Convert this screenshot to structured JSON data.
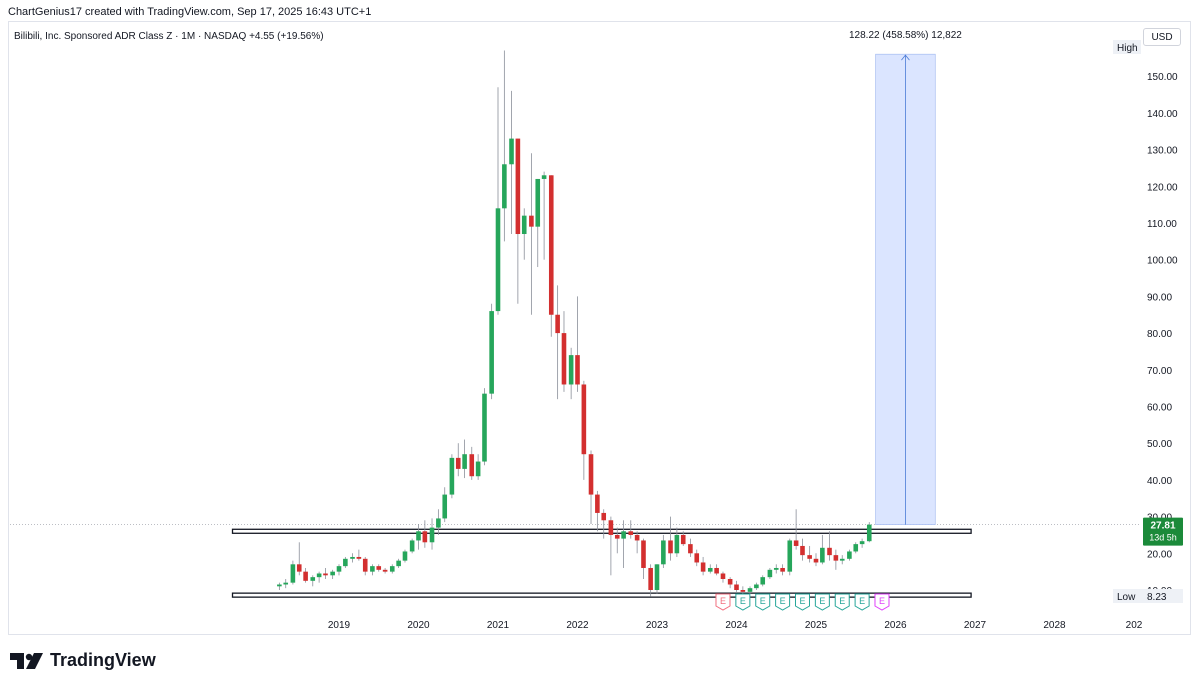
{
  "header": {
    "attribution": "ChartGenius17 created with TradingView.com, Sep 17, 2025 16:43 UTC+1",
    "symbol_line": "Bilibili, Inc. Sponsored ADR Class Z · 1M · NASDAQ  +4.55 (+19.56%)",
    "currency": "USD"
  },
  "brand": {
    "name": "TradingView"
  },
  "colors": {
    "up": "#26a65b",
    "down": "#d32f2f",
    "projection_fill": "#dbe5ff",
    "projection_line": "#4a7bd6",
    "price_tag": "#1b8a3a",
    "earnings_red": "#f26d7d",
    "earnings_green": "#26a69a",
    "earnings_purple": "#e040fb"
  },
  "chart_data": {
    "type": "candlestick",
    "interval": "1M",
    "x_tick_labels": [
      "2019",
      "2020",
      "2021",
      "2022",
      "2023",
      "2024",
      "2025",
      "2026",
      "2027",
      "2028",
      "202"
    ],
    "y_ticks": [
      10,
      20,
      30,
      40,
      50,
      60,
      70,
      80,
      90,
      100,
      110,
      120,
      130,
      140,
      150
    ],
    "y_tick_labels": [
      "10.00",
      "20.00",
      "30.00",
      "40.00",
      "50.00",
      "60.00",
      "70.00",
      "80.00",
      "90.00",
      "100.00",
      "110.00",
      "120.00",
      "130.00",
      "140.00",
      "150.00"
    ],
    "ylim": [
      8.0,
      158.0
    ],
    "candles": [
      {
        "t": 2018.25,
        "o": 11.0,
        "h": 12.0,
        "l": 10.0,
        "c": 11.5
      },
      {
        "t": 2018.33,
        "o": 11.5,
        "h": 13.0,
        "l": 10.5,
        "c": 12.0
      },
      {
        "t": 2018.42,
        "o": 12.0,
        "h": 18.0,
        "l": 11.5,
        "c": 17.0
      },
      {
        "t": 2018.5,
        "o": 17.0,
        "h": 23.0,
        "l": 14.0,
        "c": 15.0
      },
      {
        "t": 2018.58,
        "o": 15.0,
        "h": 16.0,
        "l": 12.0,
        "c": 12.5
      },
      {
        "t": 2018.67,
        "o": 12.5,
        "h": 14.0,
        "l": 11.0,
        "c": 13.5
      },
      {
        "t": 2018.75,
        "o": 13.5,
        "h": 15.0,
        "l": 12.0,
        "c": 14.5
      },
      {
        "t": 2018.83,
        "o": 14.5,
        "h": 16.0,
        "l": 13.0,
        "c": 14.0
      },
      {
        "t": 2018.92,
        "o": 14.0,
        "h": 15.5,
        "l": 13.0,
        "c": 15.0
      },
      {
        "t": 2019.0,
        "o": 15.0,
        "h": 17.0,
        "l": 14.0,
        "c": 16.5
      },
      {
        "t": 2019.08,
        "o": 16.5,
        "h": 19.0,
        "l": 16.0,
        "c": 18.5
      },
      {
        "t": 2019.17,
        "o": 18.5,
        "h": 20.0,
        "l": 17.5,
        "c": 19.0
      },
      {
        "t": 2019.25,
        "o": 19.0,
        "h": 21.0,
        "l": 18.0,
        "c": 18.5
      },
      {
        "t": 2019.33,
        "o": 18.5,
        "h": 19.0,
        "l": 14.0,
        "c": 15.0
      },
      {
        "t": 2019.42,
        "o": 15.0,
        "h": 17.0,
        "l": 14.0,
        "c": 16.5
      },
      {
        "t": 2019.5,
        "o": 16.5,
        "h": 17.0,
        "l": 15.0,
        "c": 15.5
      },
      {
        "t": 2019.58,
        "o": 15.5,
        "h": 16.0,
        "l": 14.5,
        "c": 15.0
      },
      {
        "t": 2019.67,
        "o": 15.0,
        "h": 17.0,
        "l": 14.5,
        "c": 16.5
      },
      {
        "t": 2019.75,
        "o": 16.5,
        "h": 18.5,
        "l": 16.0,
        "c": 18.0
      },
      {
        "t": 2019.83,
        "o": 18.0,
        "h": 21.0,
        "l": 17.5,
        "c": 20.5
      },
      {
        "t": 2019.92,
        "o": 20.5,
        "h": 24.0,
        "l": 20.0,
        "c": 23.5
      },
      {
        "t": 2020.0,
        "o": 23.5,
        "h": 28.0,
        "l": 21.0,
        "c": 26.0
      },
      {
        "t": 2020.08,
        "o": 26.0,
        "h": 29.0,
        "l": 21.5,
        "c": 23.0
      },
      {
        "t": 2020.17,
        "o": 23.0,
        "h": 29.5,
        "l": 21.0,
        "c": 27.0
      },
      {
        "t": 2020.25,
        "o": 27.0,
        "h": 32.0,
        "l": 25.0,
        "c": 29.5
      },
      {
        "t": 2020.33,
        "o": 29.5,
        "h": 38.0,
        "l": 28.5,
        "c": 36.0
      },
      {
        "t": 2020.42,
        "o": 36.0,
        "h": 47.0,
        "l": 35.0,
        "c": 46.0
      },
      {
        "t": 2020.5,
        "o": 46.0,
        "h": 50.0,
        "l": 41.0,
        "c": 43.0
      },
      {
        "t": 2020.58,
        "o": 43.0,
        "h": 51.0,
        "l": 40.5,
        "c": 47.0
      },
      {
        "t": 2020.67,
        "o": 47.0,
        "h": 49.0,
        "l": 40.0,
        "c": 41.0
      },
      {
        "t": 2020.75,
        "o": 41.0,
        "h": 47.0,
        "l": 40.0,
        "c": 45.0
      },
      {
        "t": 2020.83,
        "o": 45.0,
        "h": 65.0,
        "l": 44.0,
        "c": 63.5
      },
      {
        "t": 2020.92,
        "o": 63.5,
        "h": 88.0,
        "l": 62.0,
        "c": 86.0
      },
      {
        "t": 2021.0,
        "o": 86.0,
        "h": 147.0,
        "l": 85.0,
        "c": 114.0
      },
      {
        "t": 2021.08,
        "o": 114.0,
        "h": 157.0,
        "l": 105.0,
        "c": 126.0
      },
      {
        "t": 2021.17,
        "o": 126.0,
        "h": 146.0,
        "l": 107.0,
        "c": 133.0
      },
      {
        "t": 2021.25,
        "o": 133.0,
        "h": 133.0,
        "l": 88.0,
        "c": 107.0
      },
      {
        "t": 2021.33,
        "o": 107.0,
        "h": 114.0,
        "l": 100.0,
        "c": 112.0
      },
      {
        "t": 2021.42,
        "o": 112.0,
        "h": 129.0,
        "l": 85.0,
        "c": 109.0
      },
      {
        "t": 2021.5,
        "o": 109.0,
        "h": 122.0,
        "l": 98.0,
        "c": 122.0
      },
      {
        "t": 2021.58,
        "o": 122.0,
        "h": 124.0,
        "l": 100.0,
        "c": 123.0
      },
      {
        "t": 2021.67,
        "o": 123.0,
        "h": 123.0,
        "l": 79.0,
        "c": 85.0
      },
      {
        "t": 2021.75,
        "o": 85.0,
        "h": 93.0,
        "l": 62.0,
        "c": 80.0
      },
      {
        "t": 2021.83,
        "o": 80.0,
        "h": 86.0,
        "l": 64.0,
        "c": 66.0
      },
      {
        "t": 2021.92,
        "o": 66.0,
        "h": 76.0,
        "l": 62.0,
        "c": 74.0
      },
      {
        "t": 2022.0,
        "o": 74.0,
        "h": 90.0,
        "l": 64.0,
        "c": 66.0
      },
      {
        "t": 2022.08,
        "o": 66.0,
        "h": 67.0,
        "l": 40.0,
        "c": 47.0
      },
      {
        "t": 2022.17,
        "o": 47.0,
        "h": 48.0,
        "l": 28.0,
        "c": 36.0
      },
      {
        "t": 2022.25,
        "o": 36.0,
        "h": 37.0,
        "l": 26.0,
        "c": 31.0
      },
      {
        "t": 2022.33,
        "o": 31.0,
        "h": 32.0,
        "l": 24.0,
        "c": 29.0
      },
      {
        "t": 2022.42,
        "o": 29.0,
        "h": 30.0,
        "l": 14.0,
        "c": 25.0
      },
      {
        "t": 2022.5,
        "o": 25.0,
        "h": 27.0,
        "l": 20.0,
        "c": 24.0
      },
      {
        "t": 2022.58,
        "o": 24.0,
        "h": 29.0,
        "l": 16.0,
        "c": 26.0
      },
      {
        "t": 2022.67,
        "o": 26.0,
        "h": 29.0,
        "l": 24.0,
        "c": 25.0
      },
      {
        "t": 2022.75,
        "o": 25.0,
        "h": 26.0,
        "l": 20.0,
        "c": 23.5
      },
      {
        "t": 2022.83,
        "o": 23.5,
        "h": 24.0,
        "l": 13.0,
        "c": 16.0
      },
      {
        "t": 2022.92,
        "o": 16.0,
        "h": 17.0,
        "l": 8.3,
        "c": 10.0
      },
      {
        "t": 2023.0,
        "o": 10.0,
        "h": 17.0,
        "l": 9.0,
        "c": 17.0
      },
      {
        "t": 2023.08,
        "o": 17.0,
        "h": 25.0,
        "l": 16.0,
        "c": 23.5
      },
      {
        "t": 2023.17,
        "o": 23.5,
        "h": 30.0,
        "l": 18.0,
        "c": 20.0
      },
      {
        "t": 2023.25,
        "o": 20.0,
        "h": 27.0,
        "l": 19.0,
        "c": 25.0
      },
      {
        "t": 2023.33,
        "o": 25.0,
        "h": 26.0,
        "l": 22.0,
        "c": 22.5
      },
      {
        "t": 2023.42,
        "o": 22.5,
        "h": 24.0,
        "l": 19.0,
        "c": 20.0
      },
      {
        "t": 2023.5,
        "o": 20.0,
        "h": 21.0,
        "l": 16.5,
        "c": 17.5
      },
      {
        "t": 2023.58,
        "o": 17.5,
        "h": 19.0,
        "l": 14.0,
        "c": 15.0
      },
      {
        "t": 2023.67,
        "o": 15.0,
        "h": 17.0,
        "l": 14.5,
        "c": 16.0
      },
      {
        "t": 2023.75,
        "o": 16.0,
        "h": 17.0,
        "l": 14.0,
        "c": 14.5
      },
      {
        "t": 2023.83,
        "o": 14.5,
        "h": 15.0,
        "l": 12.0,
        "c": 13.0
      },
      {
        "t": 2023.92,
        "o": 13.0,
        "h": 13.5,
        "l": 10.5,
        "c": 11.5
      },
      {
        "t": 2024.0,
        "o": 11.5,
        "h": 12.5,
        "l": 9.5,
        "c": 10.0
      },
      {
        "t": 2024.08,
        "o": 10.0,
        "h": 11.0,
        "l": 8.8,
        "c": 9.5
      },
      {
        "t": 2024.17,
        "o": 9.5,
        "h": 11.0,
        "l": 9.0,
        "c": 10.5
      },
      {
        "t": 2024.25,
        "o": 10.5,
        "h": 12.0,
        "l": 10.0,
        "c": 11.5
      },
      {
        "t": 2024.33,
        "o": 11.5,
        "h": 14.0,
        "l": 11.0,
        "c": 13.5
      },
      {
        "t": 2024.42,
        "o": 13.5,
        "h": 16.0,
        "l": 13.0,
        "c": 15.5
      },
      {
        "t": 2024.5,
        "o": 15.5,
        "h": 17.0,
        "l": 14.5,
        "c": 16.0
      },
      {
        "t": 2024.58,
        "o": 16.0,
        "h": 17.0,
        "l": 14.0,
        "c": 15.0
      },
      {
        "t": 2024.67,
        "o": 15.0,
        "h": 24.0,
        "l": 14.0,
        "c": 23.5
      },
      {
        "t": 2024.75,
        "o": 23.5,
        "h": 32.0,
        "l": 21.0,
        "c": 22.0
      },
      {
        "t": 2024.83,
        "o": 22.0,
        "h": 24.0,
        "l": 18.0,
        "c": 19.5
      },
      {
        "t": 2024.92,
        "o": 19.5,
        "h": 22.0,
        "l": 17.5,
        "c": 18.5
      },
      {
        "t": 2025.0,
        "o": 18.5,
        "h": 20.0,
        "l": 16.5,
        "c": 17.5
      },
      {
        "t": 2025.08,
        "o": 17.5,
        "h": 25.0,
        "l": 17.0,
        "c": 21.5
      },
      {
        "t": 2025.17,
        "o": 21.5,
        "h": 26.0,
        "l": 18.0,
        "c": 19.5
      },
      {
        "t": 2025.25,
        "o": 19.5,
        "h": 21.0,
        "l": 15.5,
        "c": 18.0
      },
      {
        "t": 2025.33,
        "o": 18.0,
        "h": 19.5,
        "l": 17.0,
        "c": 18.5
      },
      {
        "t": 2025.42,
        "o": 18.5,
        "h": 21.0,
        "l": 18.0,
        "c": 20.5
      },
      {
        "t": 2025.5,
        "o": 20.5,
        "h": 23.0,
        "l": 20.0,
        "c": 22.5
      },
      {
        "t": 2025.58,
        "o": 22.5,
        "h": 24.0,
        "l": 21.5,
        "c": 23.3
      },
      {
        "t": 2025.67,
        "o": 23.3,
        "h": 28.5,
        "l": 23.0,
        "c": 27.81
      }
    ],
    "horizontal_levels": [
      {
        "y": 26.0,
        "x_start": 2018.0,
        "x_end": 2026.8
      },
      {
        "y": 8.6,
        "x_start": 2018.0,
        "x_end": 2026.8
      }
    ],
    "projection": {
      "x_start": 2025.75,
      "x_end": 2026.5,
      "y_start": 27.81,
      "y_end": 156.0,
      "label": "128.22 (458.58%) 12,822"
    },
    "last_price": {
      "value": 27.81,
      "label": "27.81",
      "countdown": "13d 5h"
    },
    "high": {
      "label": "High"
    },
    "low": {
      "label": "Low",
      "value_label": "8.23"
    },
    "earnings": {
      "marker": "E",
      "events": [
        {
          "t": 2023.83,
          "kind": "red"
        },
        {
          "t": 2024.08,
          "kind": "green"
        },
        {
          "t": 2024.33,
          "kind": "green"
        },
        {
          "t": 2024.58,
          "kind": "green"
        },
        {
          "t": 2024.83,
          "kind": "green"
        },
        {
          "t": 2025.08,
          "kind": "green"
        },
        {
          "t": 2025.33,
          "kind": "green"
        },
        {
          "t": 2025.58,
          "kind": "green"
        },
        {
          "t": 2025.83,
          "kind": "purple"
        }
      ]
    }
  }
}
